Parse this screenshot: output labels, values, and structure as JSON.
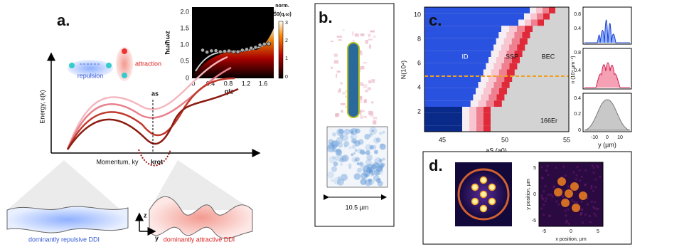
{
  "panel_a": {
    "label": "a.",
    "repulsion": "repulsion",
    "attraction": "attraction",
    "energy_axis": "Energy, ε(k)",
    "momentum_axis": "Momentum, ky",
    "a_s": "as",
    "k_rot": "krot",
    "left_caption": "dominantly repulsive DDI",
    "right_caption": "dominantly attractive DDI",
    "z": "z",
    "y": "y",
    "inset": {
      "y_label": "ħω/ħωz",
      "x_label": "qlz",
      "yticks": [
        "0",
        "0.5",
        "1.0",
        "1.5",
        "2.0"
      ],
      "xticks": [
        "0",
        "0.4",
        "0.8",
        "1.2",
        "1.6"
      ],
      "colorbar_title": "norm.",
      "colorbar_label": "S̃0(q,ω)",
      "colorbar_ticks": [
        "0",
        "1",
        "2",
        "3"
      ]
    }
  },
  "panel_b": {
    "label": "b.",
    "scale": "10.5 µm"
  },
  "panel_c": {
    "label": "c.",
    "regions": [
      "ID",
      "SSP",
      "BEC"
    ],
    "species": "166Er",
    "y_label": "N(10⁴)",
    "x_label": "aS (a0)",
    "yticks": [
      "2",
      "4",
      "6",
      "8",
      "10"
    ],
    "xticks": [
      "45",
      "50",
      "55"
    ],
    "side": {
      "y_label": "n (10⁴ µm⁻¹)",
      "x_label": "y (µm)",
      "ticks_1": [
        "0.8",
        "0.4"
      ],
      "ticks_2": [
        "0.8",
        "0.4"
      ],
      "ticks_3": [
        "0.4",
        "0.2",
        "0"
      ],
      "xticks": [
        "-10",
        "0",
        "10"
      ]
    }
  },
  "panel_d": {
    "label": "d.",
    "x_label": "x position, µm",
    "y_label": "y position, µm",
    "xticks": [
      "-5",
      "0",
      "5"
    ],
    "yticks": [
      "-5",
      "0",
      "5"
    ]
  }
}
